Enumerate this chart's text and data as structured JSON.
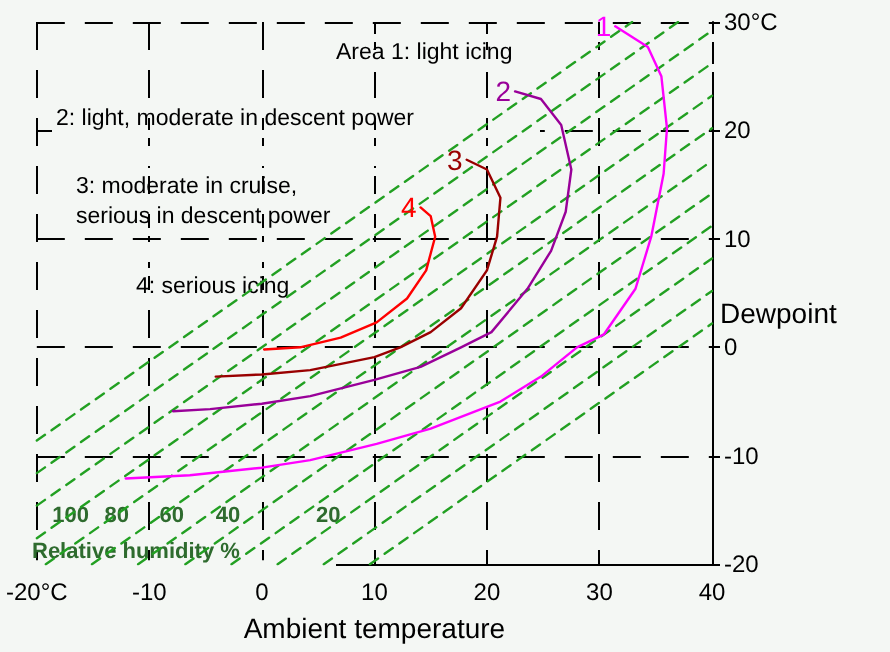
{
  "chart_data": {
    "type": "line",
    "xlabel": "Ambient temperature",
    "ylabel": "Dewpoint",
    "xlim": [
      -20,
      40
    ],
    "ylim": [
      -20,
      30
    ],
    "xticks": [
      {
        "value": -20,
        "label": "-20°C"
      },
      -10,
      0,
      10,
      20,
      30,
      40
    ],
    "yticks": [
      -20,
      -10,
      0,
      10,
      20,
      {
        "value": 30,
        "label": "30°C"
      }
    ],
    "grid": true,
    "legend": false,
    "marker": "none",
    "series": [
      {
        "name": "1",
        "color": "#ff00ff",
        "x": [
          31.4,
          34.3,
          35.5,
          36,
          35.7,
          34.6,
          33.2,
          30.4,
          28,
          24.8,
          21.2,
          15,
          10.2,
          4.3,
          0,
          -6.4,
          -12.1
        ],
        "values": [
          29.6,
          27.7,
          25,
          20.2,
          16,
          10.2,
          5.4,
          1.2,
          0,
          -2.7,
          -5,
          -7.5,
          -8.9,
          -10.4,
          -11.1,
          -11.8,
          -12.1
        ]
      },
      {
        "name": "2",
        "color": "#990099",
        "x": [
          22.5,
          24.8,
          26.6,
          27.5,
          27,
          25.7,
          23.6,
          20.4,
          17.7,
          14.1,
          10,
          4.3,
          0,
          -4.6,
          -7.9
        ],
        "values": [
          23.6,
          22.9,
          20.5,
          16.4,
          12.5,
          8.9,
          5.4,
          1.4,
          0,
          -1.8,
          -3,
          -4.5,
          -5.2,
          -5.7,
          -5.9
        ]
      },
      {
        "name": "3",
        "color": "#990000",
        "x": [
          18.2,
          20,
          21.2,
          20.9,
          20,
          17.7,
          15,
          12.3,
          10,
          4.3,
          0,
          -4.1
        ],
        "values": [
          17.3,
          16.4,
          13.8,
          10.2,
          7.1,
          3.6,
          1.4,
          0,
          -0.9,
          -2.1,
          -2.5,
          -2.7
        ]
      },
      {
        "name": "4",
        "color": "#ff0000",
        "x": [
          14.1,
          15,
          15.4,
          14.6,
          12.9,
          10.2,
          7,
          3.4,
          0.2
        ],
        "values": [
          12.9,
          12.1,
          10.2,
          7.1,
          4.5,
          2.3,
          0.9,
          0,
          -0.2
        ]
      },
      {
        "color": "#22a022",
        "line_style": "dashed",
        "x": [
          -20,
          32.9
        ],
        "values": [
          -8.6,
          30
        ]
      },
      {
        "color": "#22a022",
        "line_style": "dashed",
        "x": [
          -20,
          37
        ],
        "values": [
          -11.6,
          30
        ]
      },
      {
        "color": "#22a022",
        "line_style": "dashed",
        "x": [
          -20,
          40
        ],
        "values": [
          -14.6,
          29.2
        ]
      },
      {
        "color": "#22a022",
        "line_style": "dashed",
        "x": [
          -20,
          40
        ],
        "values": [
          -17.6,
          26.2
        ]
      },
      {
        "color": "#22a022",
        "line_style": "dashed",
        "x": [
          -19.2,
          40
        ],
        "values": [
          -20,
          23.2
        ]
      },
      {
        "color": "#22a022",
        "line_style": "dashed",
        "x": [
          -15.1,
          40
        ],
        "values": [
          -20,
          20.2
        ]
      },
      {
        "color": "#22a022",
        "line_style": "dashed",
        "x": [
          -11,
          40
        ],
        "values": [
          -20,
          17.2
        ]
      },
      {
        "color": "#22a022",
        "line_style": "dashed",
        "x": [
          -6.8,
          40
        ],
        "values": [
          -20,
          14.2
        ]
      },
      {
        "color": "#22a022",
        "line_style": "dashed",
        "x": [
          -2.7,
          40
        ],
        "values": [
          -20,
          11.2
        ]
      },
      {
        "color": "#22a022",
        "line_style": "dashed",
        "x": [
          1.4,
          40
        ],
        "values": [
          -20,
          8.2
        ]
      },
      {
        "color": "#22a022",
        "line_style": "dashed",
        "x": [
          5.5,
          40
        ],
        "values": [
          -20,
          5.2
        ]
      },
      {
        "color": "#22a022",
        "line_style": "dashed",
        "x": [
          9.6,
          40
        ],
        "values": [
          -20,
          2.2
        ]
      }
    ],
    "annotations": [
      "Area 1: light icing",
      "2: light, moderate in descent power",
      "3: moderate in cruise, serious in descent power",
      "4: serious icing",
      {
        "text": "100",
        "x": -17,
        "y": -15.6
      },
      {
        "text": "80",
        "x": -12.9,
        "y": -15.6
      },
      {
        "text": "60",
        "x": -8,
        "y": -15.6
      },
      {
        "text": "40",
        "x": -3,
        "y": -15.6
      },
      {
        "text": "20",
        "x": 5.9,
        "y": -15.6
      },
      "Relative humidity %"
    ]
  }
}
